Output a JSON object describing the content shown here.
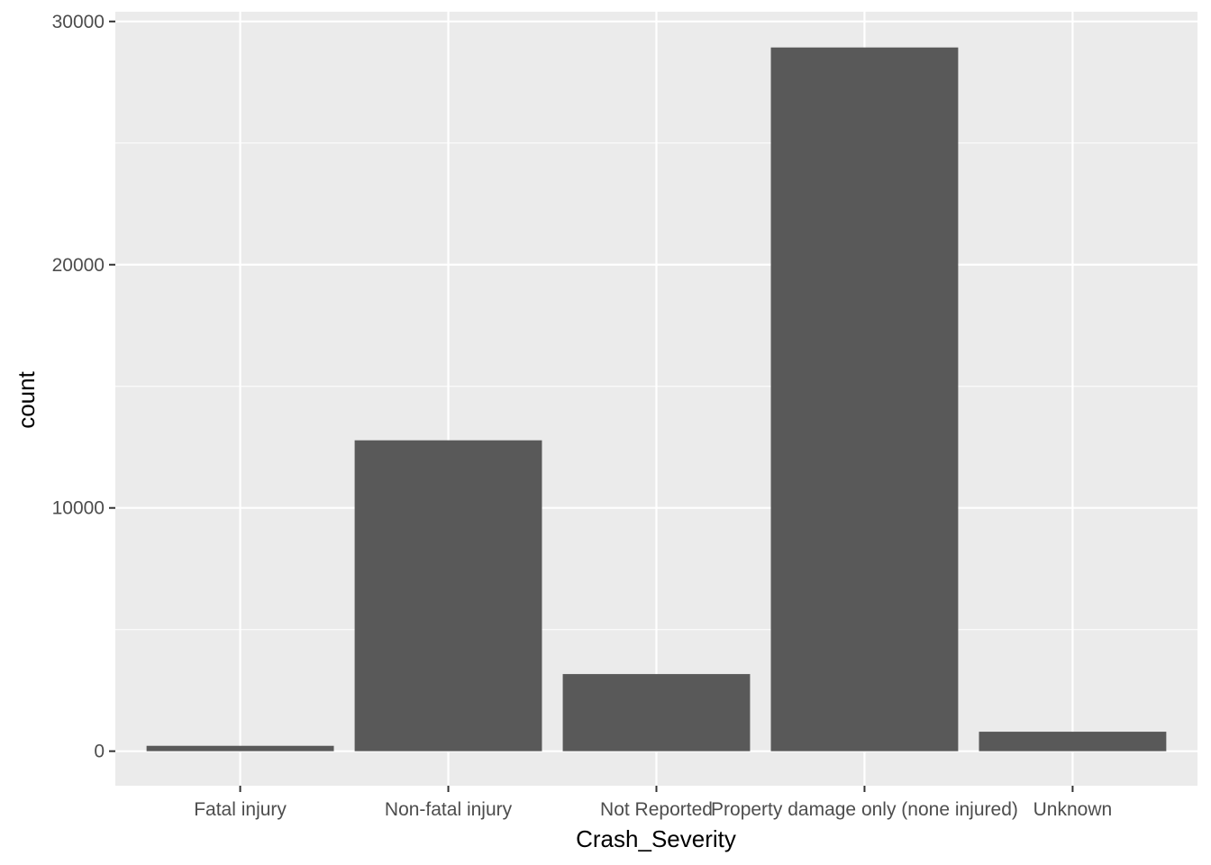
{
  "chart_data": {
    "type": "bar",
    "xlabel": "Crash_Severity",
    "ylabel": "count",
    "categories": [
      "Fatal injury",
      "Non-fatal injury",
      "Not Reported",
      "Property damage only (none injured)",
      "Unknown"
    ],
    "values": [
      220,
      12780,
      3170,
      28930,
      800
    ],
    "ylim": [
      -1420,
      30400
    ],
    "yticks": [
      0,
      10000,
      20000,
      30000
    ],
    "ytick_labels": [
      "0",
      "10000",
      "20000",
      "30000"
    ],
    "grid": true,
    "colors": {
      "panel_background": "#ebebeb",
      "grid_line": "#ffffff",
      "bar_fill": "#595959",
      "tick_color": "#333333"
    }
  }
}
